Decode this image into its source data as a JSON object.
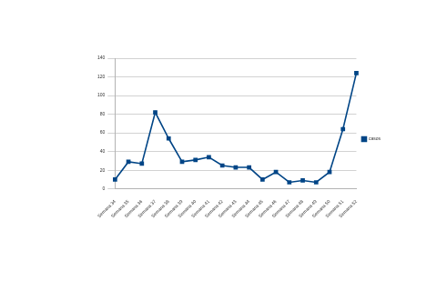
{
  "chart_data": {
    "type": "line",
    "categories": [
      "Semana 34",
      "Semana 35",
      "Semana 36",
      "Semana 37",
      "Semana 38",
      "Semana 39",
      "Semana 40",
      "Semana 41",
      "Semana 42",
      "Semana 43",
      "Semana 44",
      "Semana 45",
      "Semana 46",
      "Semana 47",
      "Semana 48",
      "Semana 49",
      "Semana 50",
      "Semana 51",
      "Semana 52"
    ],
    "series": [
      {
        "name": "casos",
        "color": "#004586",
        "marker": "square",
        "line_style": "solid",
        "values": [
          10,
          29,
          27,
          82,
          54,
          29,
          31,
          34,
          25,
          23,
          23,
          10,
          18,
          7,
          9,
          7,
          18,
          64,
          124
        ]
      }
    ],
    "ylim": [
      0,
      140
    ],
    "yticks": [
      0,
      20,
      40,
      60,
      80,
      100,
      120,
      140
    ],
    "grid": true,
    "legend": "right"
  }
}
